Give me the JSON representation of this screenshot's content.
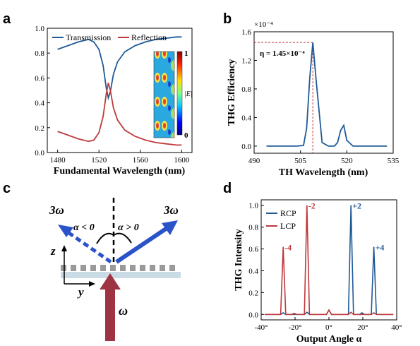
{
  "chart_data": [
    {
      "panel": "a",
      "type": "line",
      "xlabel": "Fundamental Wavelength (nm)",
      "ylabel": "",
      "xlim": [
        1470,
        1610
      ],
      "ylim": [
        0.0,
        1.0
      ],
      "xticks": [
        "1480",
        "1520",
        "1560",
        "1600"
      ],
      "yticks": [
        "0.0",
        "0.2",
        "0.4",
        "0.6",
        "0.8",
        "1.0"
      ],
      "legend_placement": "top",
      "x": [
        1480,
        1490,
        1500,
        1510,
        1515,
        1520,
        1524,
        1527,
        1529,
        1531,
        1534,
        1538,
        1545,
        1555,
        1565,
        1575,
        1585,
        1595,
        1600
      ],
      "series": [
        {
          "name": "Transmission",
          "color": "#1f5a96",
          "values": [
            0.83,
            0.86,
            0.89,
            0.91,
            0.89,
            0.83,
            0.7,
            0.52,
            0.44,
            0.49,
            0.63,
            0.73,
            0.81,
            0.86,
            0.89,
            0.91,
            0.92,
            0.93,
            0.93
          ]
        },
        {
          "name": "Reflection",
          "color": "#c0393b",
          "values": [
            0.17,
            0.14,
            0.11,
            0.09,
            0.1,
            0.16,
            0.29,
            0.47,
            0.56,
            0.5,
            0.36,
            0.26,
            0.18,
            0.13,
            0.1,
            0.08,
            0.07,
            0.06,
            0.06
          ]
        }
      ],
      "inset": {
        "label": "|E|",
        "max_label": "1",
        "min_label": "0"
      }
    },
    {
      "panel": "b",
      "type": "line",
      "xlabel": "TH Wavelength (nm)",
      "ylabel": "THG Efficiency",
      "scale_label": "×10⁻⁴",
      "xlim": [
        490,
        535
      ],
      "ylim": [
        -0.1,
        1.6
      ],
      "xticks": [
        "490",
        "505",
        "520",
        "535"
      ],
      "yticks": [
        "0.0",
        "0.4",
        "0.8",
        "1.2",
        "1.6"
      ],
      "x": [
        494,
        500,
        504,
        506,
        507,
        508,
        509,
        510,
        512,
        514,
        516,
        517,
        518,
        519,
        520,
        522,
        526,
        530,
        533
      ],
      "series": [
        {
          "name": "",
          "color": "#1f5a96",
          "values": [
            0.0,
            0.0,
            0.0,
            0.01,
            0.25,
            0.95,
            1.45,
            0.95,
            0.05,
            0.0,
            0.0,
            0.05,
            0.22,
            0.29,
            0.08,
            0.0,
            0.0,
            0.0,
            0.0
          ]
        }
      ],
      "annotation": {
        "text": "η = 1.45×10⁻⁴",
        "x": 509,
        "y": 1.45,
        "color": "#c0393b"
      }
    },
    {
      "panel": "c",
      "type": "diagram",
      "labels": {
        "left_beam": "3ω",
        "right_beam": "3ω",
        "left_angle": "α < 0",
        "right_angle": "α > 0",
        "axis_z": "z",
        "axis_y": "y",
        "input_beam": "ω"
      },
      "colors": {
        "output_beam": "#2a52c9",
        "input_beam": "#9e3344",
        "substrate": "#c9dce6",
        "grating": "#9a9a9a"
      }
    },
    {
      "panel": "d",
      "type": "line",
      "xlabel": "Output Angle α",
      "ylabel": "THG Intensity",
      "xlim": [
        -40,
        40
      ],
      "ylim": [
        -0.05,
        1.05
      ],
      "xticks": [
        "-40°",
        "-20°",
        "0°",
        "20°",
        "40°"
      ],
      "yticks": [
        "0.0",
        "0.2",
        "0.4",
        "0.6",
        "0.8",
        "1.0"
      ],
      "legend_placement": "top-left",
      "series": [
        {
          "name": "RCP",
          "color": "#1f5a96",
          "points": [
            [
              -38,
              0
            ],
            [
              -28.5,
              0
            ],
            [
              -27,
              0.015
            ],
            [
              -25.5,
              0
            ],
            [
              -14.5,
              0
            ],
            [
              -13,
              0.02
            ],
            [
              -11.5,
              0
            ],
            [
              -1.5,
              0
            ],
            [
              0,
              0.04
            ],
            [
              1.5,
              0
            ],
            [
              11.5,
              0
            ],
            [
              13,
              1.0
            ],
            [
              14.5,
              0
            ],
            [
              18,
              0
            ],
            [
              19.5,
              0.015
            ],
            [
              21,
              0
            ],
            [
              25,
              0
            ],
            [
              26.5,
              0.62
            ],
            [
              28,
              0
            ],
            [
              38,
              0
            ]
          ]
        },
        {
          "name": "LCP",
          "color": "#c0393b",
          "points": [
            [
              -38,
              0
            ],
            [
              -28.5,
              0
            ],
            [
              -27,
              0.62
            ],
            [
              -25.5,
              0
            ],
            [
              -22,
              0
            ],
            [
              -20.5,
              0.01
            ],
            [
              -19,
              0
            ],
            [
              -14.5,
              0
            ],
            [
              -13,
              1.0
            ],
            [
              -11.5,
              0
            ],
            [
              -1.5,
              0
            ],
            [
              0,
              0.04
            ],
            [
              1.5,
              0
            ],
            [
              11.5,
              0
            ],
            [
              13,
              0.02
            ],
            [
              14.5,
              0
            ],
            [
              25,
              0
            ],
            [
              26.5,
              0.015
            ],
            [
              28,
              0
            ],
            [
              38,
              0
            ]
          ]
        }
      ],
      "peak_labels": [
        {
          "text": "-4",
          "x": -27,
          "y": 0.62,
          "color": "#c0393b"
        },
        {
          "text": "-2",
          "x": -13,
          "y": 1.0,
          "color": "#c0393b"
        },
        {
          "text": "+2",
          "x": 13,
          "y": 1.0,
          "color": "#1f5a96"
        },
        {
          "text": "+4",
          "x": 26.5,
          "y": 0.62,
          "color": "#1f5a96"
        }
      ]
    }
  ]
}
